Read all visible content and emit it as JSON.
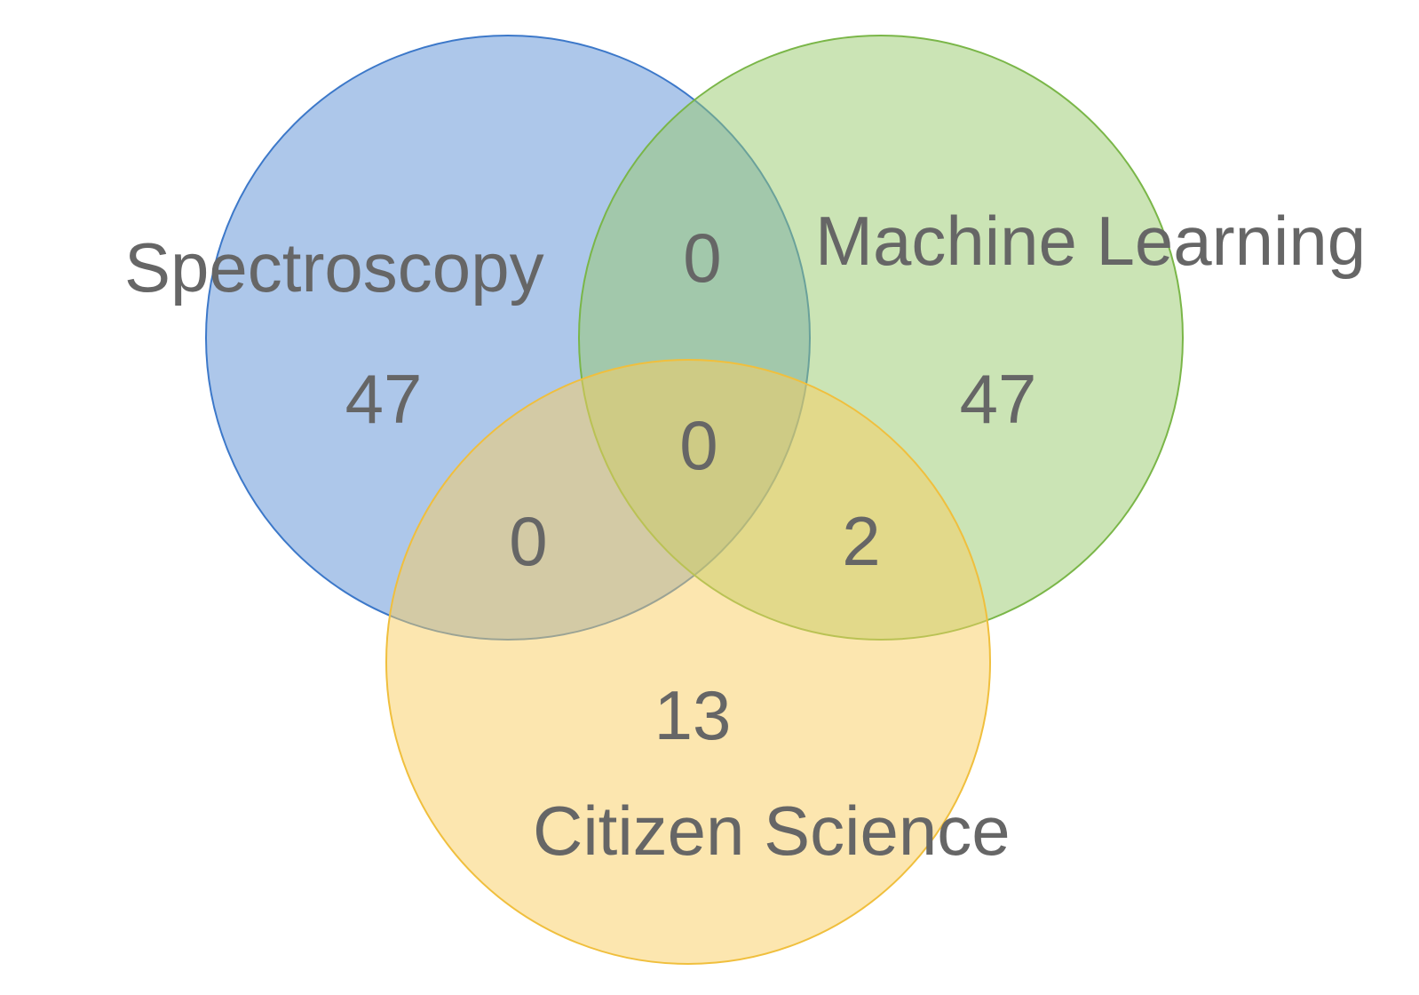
{
  "sets": [
    {
      "id": "spectroscopy",
      "label": "Spectroscopy",
      "fill": "#5b8fd6",
      "stroke": "#3c78c9",
      "fill_opacity": 0.5
    },
    {
      "id": "machine_learning",
      "label": "Machine Learning",
      "fill": "#97c96b",
      "stroke": "#7ab648",
      "fill_opacity": 0.5
    },
    {
      "id": "citizen_science",
      "label": "Citizen Science",
      "fill": "#f9ce60",
      "stroke": "#f0bf3d",
      "fill_opacity": 0.5
    }
  ],
  "counts": {
    "spectroscopy_only": "47",
    "machine_learning_only": "47",
    "citizen_science_only": "13",
    "spectroscopy_machine_learning": "0",
    "spectroscopy_citizen_science": "0",
    "machine_learning_citizen_science": "2",
    "all_three": "0"
  },
  "text_color": "#666666"
}
